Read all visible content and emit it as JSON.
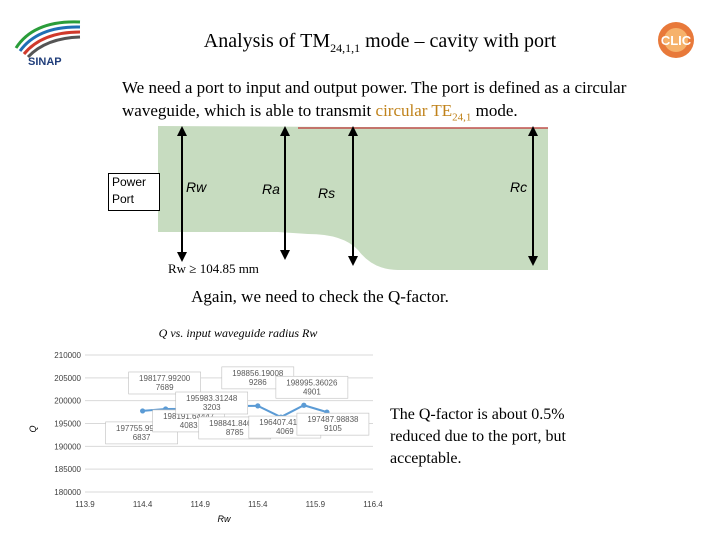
{
  "slide": {
    "title_main": "Analysis of TM",
    "title_sub": "24,1,1",
    "title_rest": " mode – cavity with port",
    "intro_part1": "We need a port to input and output power. The port is defined as a circular waveguide, which is able to transmit ",
    "intro_highlight": "circular TE",
    "intro_sub": "24,1",
    "intro_part2": " mode.",
    "again": "Again, we need to check the Q-factor.",
    "note": "The Q-factor is about 0.5% reduced due to the port, but acceptable.",
    "logo_left": "SINAP",
    "logo_right": "CLIC",
    "colors": {
      "highlight": "#c0821a",
      "cavity_fill": "#c7dcc0",
      "series": "#5b9bd5"
    }
  },
  "cavity": {
    "port_label_1": "Power",
    "port_label_2": "Port",
    "rw": "Rw",
    "ra": "Ra",
    "rs": "Rs",
    "rc": "Rc",
    "condition": "Rw ≥ 104.85 mm"
  },
  "chart_data": {
    "type": "line",
    "title": "Q vs. input waveguide radius Rw",
    "xlabel": "Rw",
    "ylabel": "Q",
    "xlim": [
      113.9,
      116.4
    ],
    "ylim": [
      180000,
      210000
    ],
    "xticks": [
      "113.9",
      "114.4",
      "114.9",
      "115.4",
      "115.9",
      "116.4"
    ],
    "yticks": [
      "180000",
      "185000",
      "190000",
      "195000",
      "200000",
      "205000",
      "210000"
    ],
    "grid": true,
    "series": [
      {
        "x": [
          114.4,
          114.6,
          114.8,
          115.0,
          115.2,
          115.4,
          115.6,
          115.8,
          116.0
        ],
        "values": [
          197755.99,
          198177.99,
          198191.64,
          195983.31,
          198841.84,
          198856.19,
          196407.42,
          198995.36,
          197487.99
        ]
      }
    ],
    "data_labels": [
      "197755.99048 6837",
      "198177.99200 7689",
      "198191.64447 4083",
      "195983.31248 3203",
      "198841.84602 8785",
      "198856.19008 9286",
      "196407.41919 4069",
      "198995.36026 4901",
      "197487.98838 9105"
    ]
  }
}
